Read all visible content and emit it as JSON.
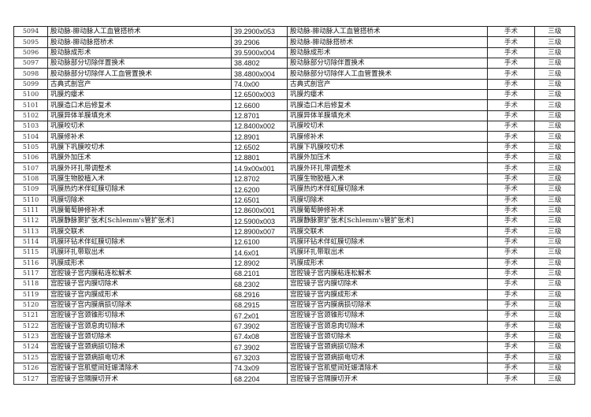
{
  "rows": [
    [
      "5094",
      "股动脉-腓动脉人工血管搭桥术",
      "39.2900x053",
      "股动脉-腓动脉人工血管搭桥术",
      "手术",
      "三级"
    ],
    [
      "5095",
      "股动脉-腓动脉搭桥术",
      "39.2906",
      "股动脉-腓动脉搭桥术",
      "手术",
      "三级"
    ],
    [
      "5096",
      "股动脉成形术",
      "39.5900x004",
      "股动脉成形术",
      "手术",
      "三级"
    ],
    [
      "5097",
      "股动脉部分切除伴置换术",
      "38.4802",
      "股动脉部分切除伴置换术",
      "手术",
      "三级"
    ],
    [
      "5098",
      "股动脉部分切除伴人工血管置换术",
      "38.4800x004",
      "股动脉部分切除伴人工血管置换术",
      "手术",
      "三级"
    ],
    [
      "5099",
      "古典式剖宫产",
      "74.0x00",
      "古典式剖宫产",
      "手术",
      "三级"
    ],
    [
      "5100",
      "巩膜灼瘘术",
      "12.6500x003",
      "巩膜灼瘘术",
      "手术",
      "三级"
    ],
    [
      "5101",
      "巩膜造口术后修复术",
      "12.6600",
      "巩膜造口术后修复术",
      "手术",
      "三级"
    ],
    [
      "5102",
      "巩膜异体羊膜填充术",
      "12.8701",
      "巩膜异体羊膜填充术",
      "手术",
      "三级"
    ],
    [
      "5103",
      "巩膜咬切术",
      "12.8400x002",
      "巩膜咬切术",
      "手术",
      "三级"
    ],
    [
      "5104",
      "巩膜修补术",
      "12.8901",
      "巩膜修补术",
      "手术",
      "三级"
    ],
    [
      "5105",
      "巩膜下巩膜咬切术",
      "12.6502",
      "巩膜下巩膜咬切术",
      "手术",
      "三级"
    ],
    [
      "5106",
      "巩膜外加压术",
      "12.8801",
      "巩膜外加压术",
      "手术",
      "三级"
    ],
    [
      "5107",
      "巩膜外环扎带调整术",
      "14.9x00x001",
      "巩膜外环扎带调整术",
      "手术",
      "三级"
    ],
    [
      "5108",
      "巩膜生物胶植入术",
      "12.8702",
      "巩膜生物胶植入术",
      "手术",
      "三级"
    ],
    [
      "5109",
      "巩膜热灼术伴虹膜切除术",
      "12.6200",
      "巩膜热灼术伴虹膜切除术",
      "手术",
      "三级"
    ],
    [
      "5110",
      "巩膜切除术",
      "12.6501",
      "巩膜切除术",
      "手术",
      "三级"
    ],
    [
      "5111",
      "巩膜葡萄肿修补术",
      "12.8600x001",
      "巩膜葡萄肿修补术",
      "手术",
      "三级"
    ],
    [
      "5112",
      "巩膜静脉窦扩张术[Schlemm's管扩张术]",
      "12.5900x003",
      "巩膜静脉窦扩张术[Schlemm's管扩张术]",
      "手术",
      "三级"
    ],
    [
      "5113",
      "巩膜交联术",
      "12.8900x007",
      "巩膜交联术",
      "手术",
      "三级"
    ],
    [
      "5114",
      "巩膜环钻术伴虹膜切除术",
      "12.6100",
      "巩膜环钻术伴虹膜切除术",
      "手术",
      "三级"
    ],
    [
      "5115",
      "巩膜环扎带取出术",
      "14.6x01",
      "巩膜环扎带取出术",
      "手术",
      "三级"
    ],
    [
      "5116",
      "巩膜成形术",
      "12.8902",
      "巩膜成形术",
      "手术",
      "三级"
    ],
    [
      "5117",
      "宫腔镜子宫内膜粘连松解术",
      "68.2101",
      "宫腔镜子宫内膜粘连松解术",
      "手术",
      "三级"
    ],
    [
      "5118",
      "宫腔镜子宫内膜切除术",
      "68.2302",
      "宫腔镜子宫内膜切除术",
      "手术",
      "三级"
    ],
    [
      "5119",
      "宫腔镜子宫内膜成形术",
      "68.2916",
      "宫腔镜子宫内膜成形术",
      "手术",
      "三级"
    ],
    [
      "5120",
      "宫腔镜子宫内膜病损切除术",
      "68.2915",
      "宫腔镜子宫内膜病损切除术",
      "手术",
      "三级"
    ],
    [
      "5121",
      "宫腔镜子宫颈锥形切除术",
      "67.2x01",
      "宫腔镜子宫颈锥形切除术",
      "手术",
      "三级"
    ],
    [
      "5122",
      "宫腔镜子宫颈息肉切除术",
      "67.3902",
      "宫腔镜子宫颈息肉切除术",
      "手术",
      "三级"
    ],
    [
      "5123",
      "宫腔镜子宫颈切除术",
      "67.4x08",
      "宫腔镜子宫颈切除术",
      "手术",
      "三级"
    ],
    [
      "5124",
      "宫腔镜子宫颈病损切除术",
      "67.3902",
      "宫腔镜子宫颈病损切除术",
      "手术",
      "三级"
    ],
    [
      "5125",
      "宫腔镜子宫颈病损电切术",
      "67.3203",
      "宫腔镜子宫颈病损电切术",
      "手术",
      "三级"
    ],
    [
      "5126",
      "宫腔镜子宫肌壁间妊娠清除术",
      "74.3x09",
      "宫腔镜子宫肌壁间妊娠清除术",
      "手术",
      "三级"
    ],
    [
      "5127",
      "宫腔镜子宫隔膜切开术",
      "68.2204",
      "宫腔镜子宫隔膜切开术",
      "手术",
      "三级"
    ]
  ]
}
